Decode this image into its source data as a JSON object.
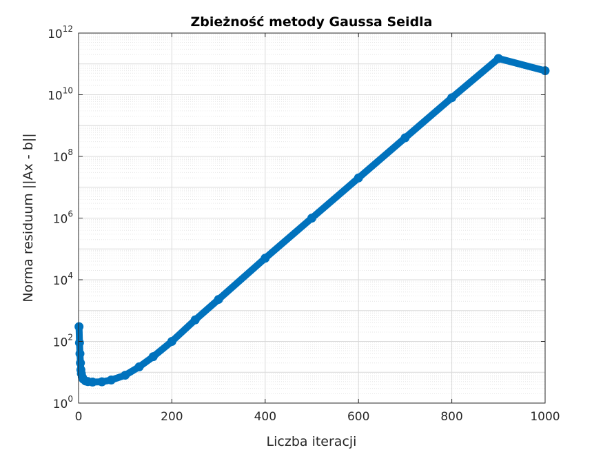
{
  "chart_data": {
    "type": "line",
    "title": "Zbieżność metody Gaussa Seidla",
    "xlabel": "Liczba iteracji",
    "ylabel": "Norma residuum  ||Ax - b||",
    "xlim": [
      0,
      1000
    ],
    "ylim": [
      1,
      1000000000000
    ],
    "yscale": "log",
    "grid": true,
    "minor_grid": true,
    "x_ticks": [
      0,
      200,
      400,
      600,
      800,
      1000
    ],
    "x_tick_labels": [
      "0",
      "200",
      "400",
      "600",
      "800",
      "1000"
    ],
    "y_ticks": [
      1,
      100,
      10000,
      1000000,
      100000000,
      10000000000,
      1000000000000
    ],
    "y_tick_labels": [
      {
        "base": "10",
        "exp": "0"
      },
      {
        "base": "10",
        "exp": "2"
      },
      {
        "base": "10",
        "exp": "4"
      },
      {
        "base": "10",
        "exp": "6"
      },
      {
        "base": "10",
        "exp": "8"
      },
      {
        "base": "10",
        "exp": "10"
      },
      {
        "base": "10",
        "exp": "12"
      }
    ],
    "marker": "circle",
    "series": [
      {
        "color": "#0072bd",
        "x": [
          1,
          2,
          3,
          4,
          5,
          6,
          8,
          10,
          15,
          20,
          30,
          50,
          70,
          100,
          130,
          160,
          200,
          250,
          300,
          400,
          500,
          600,
          700,
          800,
          900,
          1000
        ],
        "y": [
          300,
          90,
          40,
          20,
          12,
          9,
          7,
          6,
          5.2,
          5,
          4.8,
          4.9,
          5.6,
          8,
          15,
          32,
          100,
          500,
          2300,
          50000,
          1000000,
          20000000,
          400000000,
          8000000000,
          150000000000,
          60000000000
        ]
      }
    ]
  }
}
